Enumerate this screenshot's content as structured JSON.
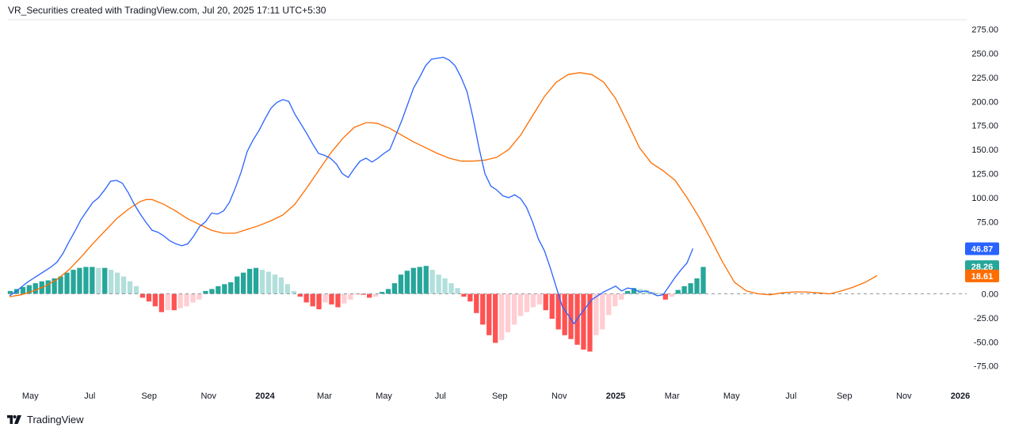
{
  "header": {
    "text": "VR_Securities created with TradingView.com, Jul 20, 2025 17:11 UTC+5:30"
  },
  "footer": {
    "brand": "TradingView"
  },
  "colors": {
    "macd_line": "#2962ff",
    "signal_line": "#ff6d00",
    "hist_pos_strong": "#26a69a",
    "hist_pos_weak": "#b2dfdb",
    "hist_neg_strong": "#ff5252",
    "hist_neg_weak": "#ffcdd2",
    "axis_text": "#131722"
  },
  "badges": [
    {
      "value": "46.87",
      "color": "#2962ff"
    },
    {
      "value": "28.26",
      "color": "#26a69a"
    },
    {
      "value": "18.61",
      "color": "#ff6d00"
    }
  ],
  "chart_data": {
    "type": "line",
    "ylim": [
      -87,
      287
    ],
    "xlim": [
      0,
      160
    ],
    "y_ticks": [
      "275.00",
      "250.00",
      "225.00",
      "200.00",
      "175.00",
      "150.00",
      "125.00",
      "100.00",
      "75.00",
      "50.00",
      "25.00",
      "0.00",
      "-25.00",
      "-50.00",
      "-75.00"
    ],
    "x_ticks": [
      {
        "label": "May",
        "x": 3.5,
        "bold": false
      },
      {
        "label": "Jul",
        "x": 13.5,
        "bold": false
      },
      {
        "label": "Sep",
        "x": 23.5,
        "bold": false
      },
      {
        "label": "Nov",
        "x": 33.5,
        "bold": false
      },
      {
        "label": "2024",
        "x": 43,
        "bold": true
      },
      {
        "label": "Mar",
        "x": 53,
        "bold": false
      },
      {
        "label": "May",
        "x": 63,
        "bold": false
      },
      {
        "label": "Jul",
        "x": 72.5,
        "bold": false
      },
      {
        "label": "Sep",
        "x": 82.5,
        "bold": false
      },
      {
        "label": "Nov",
        "x": 92.5,
        "bold": false
      },
      {
        "label": "2025",
        "x": 102,
        "bold": true
      },
      {
        "label": "Mar",
        "x": 111.5,
        "bold": false
      },
      {
        "label": "May",
        "x": 121.5,
        "bold": false
      },
      {
        "label": "Jul",
        "x": 131.5,
        "bold": false
      },
      {
        "label": "Sep",
        "x": 140.5,
        "bold": false
      },
      {
        "label": "Nov",
        "x": 150.5,
        "bold": false
      },
      {
        "label": "2026",
        "x": 160,
        "bold": true
      }
    ],
    "series": [
      {
        "kind": "line",
        "color_key": "macd_line",
        "values": [
          [
            0,
            -2
          ],
          [
            1,
            2
          ],
          [
            2,
            7
          ],
          [
            3,
            12
          ],
          [
            4,
            16
          ],
          [
            5,
            20
          ],
          [
            6,
            24
          ],
          [
            7,
            28
          ],
          [
            8,
            33
          ],
          [
            9,
            42
          ],
          [
            10,
            54
          ],
          [
            11,
            65
          ],
          [
            12,
            77
          ],
          [
            13,
            86
          ],
          [
            14,
            95
          ],
          [
            15,
            100
          ],
          [
            16,
            108
          ],
          [
            17,
            117
          ],
          [
            18,
            118
          ],
          [
            19,
            115
          ],
          [
            20,
            105
          ],
          [
            21,
            93
          ],
          [
            22,
            83
          ],
          [
            23,
            74
          ],
          [
            24,
            66
          ],
          [
            25,
            64
          ],
          [
            26,
            60
          ],
          [
            27,
            55
          ],
          [
            28,
            52
          ],
          [
            29,
            50
          ],
          [
            30,
            52
          ],
          [
            31,
            60
          ],
          [
            32,
            70
          ],
          [
            33,
            75
          ],
          [
            34,
            84
          ],
          [
            35,
            83
          ],
          [
            36,
            86
          ],
          [
            37,
            95
          ],
          [
            38,
            110
          ],
          [
            39,
            127
          ],
          [
            40,
            148
          ],
          [
            41,
            160
          ],
          [
            42,
            170
          ],
          [
            43,
            182
          ],
          [
            44,
            193
          ],
          [
            45,
            199
          ],
          [
            46,
            202
          ],
          [
            47,
            200
          ],
          [
            48,
            187
          ],
          [
            49,
            177
          ],
          [
            50,
            167
          ],
          [
            51,
            156
          ],
          [
            52,
            146
          ],
          [
            53,
            144
          ],
          [
            54,
            141
          ],
          [
            55,
            135
          ],
          [
            56,
            125
          ],
          [
            57,
            121
          ],
          [
            58,
            130
          ],
          [
            59,
            138
          ],
          [
            60,
            141
          ],
          [
            61,
            137
          ],
          [
            62,
            141
          ],
          [
            63,
            146
          ],
          [
            64,
            150
          ],
          [
            65,
            165
          ],
          [
            66,
            180
          ],
          [
            67,
            197
          ],
          [
            68,
            214
          ],
          [
            69,
            225
          ],
          [
            70,
            237
          ],
          [
            71,
            244
          ],
          [
            72,
            245
          ],
          [
            73,
            246
          ],
          [
            74,
            243
          ],
          [
            75,
            237
          ],
          [
            76,
            225
          ],
          [
            77,
            210
          ],
          [
            78,
            183
          ],
          [
            79,
            152
          ],
          [
            80,
            125
          ],
          [
            81,
            112
          ],
          [
            82,
            108
          ],
          [
            83,
            102
          ],
          [
            84,
            100
          ],
          [
            85,
            103
          ],
          [
            86,
            99
          ],
          [
            87,
            90
          ],
          [
            88,
            75
          ],
          [
            89,
            57
          ],
          [
            90,
            45
          ],
          [
            91,
            27
          ],
          [
            92,
            7
          ],
          [
            93,
            -13
          ],
          [
            94,
            -22
          ],
          [
            95,
            -31
          ],
          [
            96,
            -22
          ],
          [
            97,
            -14
          ],
          [
            98,
            -6
          ],
          [
            99,
            -2
          ],
          [
            100,
            2
          ],
          [
            101,
            5
          ],
          [
            102,
            8
          ],
          [
            103,
            3
          ],
          [
            104,
            6
          ],
          [
            105,
            5
          ],
          [
            106,
            2
          ],
          [
            107,
            3
          ],
          [
            108,
            1
          ],
          [
            109,
            -2
          ],
          [
            110,
            -1
          ],
          [
            111,
            8
          ],
          [
            112,
            17
          ],
          [
            113,
            25
          ],
          [
            114,
            32
          ],
          [
            115,
            47
          ]
        ]
      },
      {
        "kind": "line",
        "color_key": "signal_line",
        "values": [
          [
            0,
            -3
          ],
          [
            2,
            -1
          ],
          [
            4,
            3
          ],
          [
            6,
            8
          ],
          [
            8,
            15
          ],
          [
            10,
            25
          ],
          [
            12,
            38
          ],
          [
            14,
            52
          ],
          [
            16,
            65
          ],
          [
            18,
            78
          ],
          [
            20,
            88
          ],
          [
            22,
            96
          ],
          [
            23,
            98
          ],
          [
            24,
            98
          ],
          [
            26,
            93
          ],
          [
            28,
            86
          ],
          [
            30,
            78
          ],
          [
            32,
            72
          ],
          [
            34,
            66
          ],
          [
            36,
            63
          ],
          [
            38,
            63
          ],
          [
            40,
            67
          ],
          [
            42,
            71
          ],
          [
            44,
            76
          ],
          [
            46,
            82
          ],
          [
            48,
            93
          ],
          [
            50,
            110
          ],
          [
            52,
            128
          ],
          [
            54,
            146
          ],
          [
            56,
            161
          ],
          [
            58,
            173
          ],
          [
            60,
            178
          ],
          [
            61,
            178
          ],
          [
            62,
            177
          ],
          [
            64,
            172
          ],
          [
            66,
            165
          ],
          [
            68,
            158
          ],
          [
            70,
            152
          ],
          [
            72,
            146
          ],
          [
            74,
            141
          ],
          [
            76,
            138
          ],
          [
            78,
            138
          ],
          [
            80,
            139
          ],
          [
            82,
            142
          ],
          [
            84,
            150
          ],
          [
            86,
            165
          ],
          [
            88,
            185
          ],
          [
            90,
            205
          ],
          [
            92,
            220
          ],
          [
            94,
            228
          ],
          [
            96,
            230
          ],
          [
            98,
            228
          ],
          [
            100,
            220
          ],
          [
            102,
            203
          ],
          [
            104,
            178
          ],
          [
            106,
            152
          ],
          [
            108,
            136
          ],
          [
            110,
            128
          ],
          [
            112,
            118
          ],
          [
            114,
            100
          ],
          [
            116,
            80
          ],
          [
            118,
            57
          ],
          [
            120,
            33
          ],
          [
            122,
            12
          ],
          [
            124,
            3
          ],
          [
            126,
            0
          ],
          [
            128,
            -1
          ],
          [
            130,
            1
          ],
          [
            132,
            2
          ],
          [
            134,
            2
          ],
          [
            136,
            1
          ],
          [
            138,
            0
          ],
          [
            140,
            3
          ],
          [
            142,
            7
          ],
          [
            144,
            12
          ],
          [
            146,
            19
          ]
        ]
      },
      {
        "kind": "histogram",
        "values": [
          3,
          5,
          7,
          9,
          11,
          13,
          14,
          16,
          18,
          22,
          25,
          27,
          28,
          28,
          27,
          27,
          25,
          22,
          18,
          13,
          8,
          -4,
          -8,
          -13,
          -19,
          -17,
          -17,
          -15,
          -13,
          -9,
          -6,
          3,
          5,
          8,
          10,
          12,
          18,
          22,
          26,
          27,
          25,
          23,
          20,
          17,
          10,
          3,
          -3,
          -9,
          -13,
          -16,
          -9,
          -11,
          -14,
          -10,
          -6,
          -1,
          -1,
          -4,
          -3,
          2,
          5,
          11,
          20,
          24,
          27,
          28,
          29,
          25,
          20,
          16,
          11,
          6,
          -3,
          -8,
          -20,
          -32,
          -43,
          -51,
          -48,
          -40,
          -32,
          -23,
          -19,
          -14,
          -11,
          -17,
          -26,
          -37,
          -43,
          -47,
          -53,
          -58,
          -60,
          -43,
          -37,
          -22,
          -13,
          -6,
          3,
          6,
          5,
          4,
          2,
          1,
          -6,
          -3,
          4,
          8,
          11,
          16,
          28
        ],
        "bar_spacing": 1.06,
        "start_x": 0
      }
    ]
  }
}
